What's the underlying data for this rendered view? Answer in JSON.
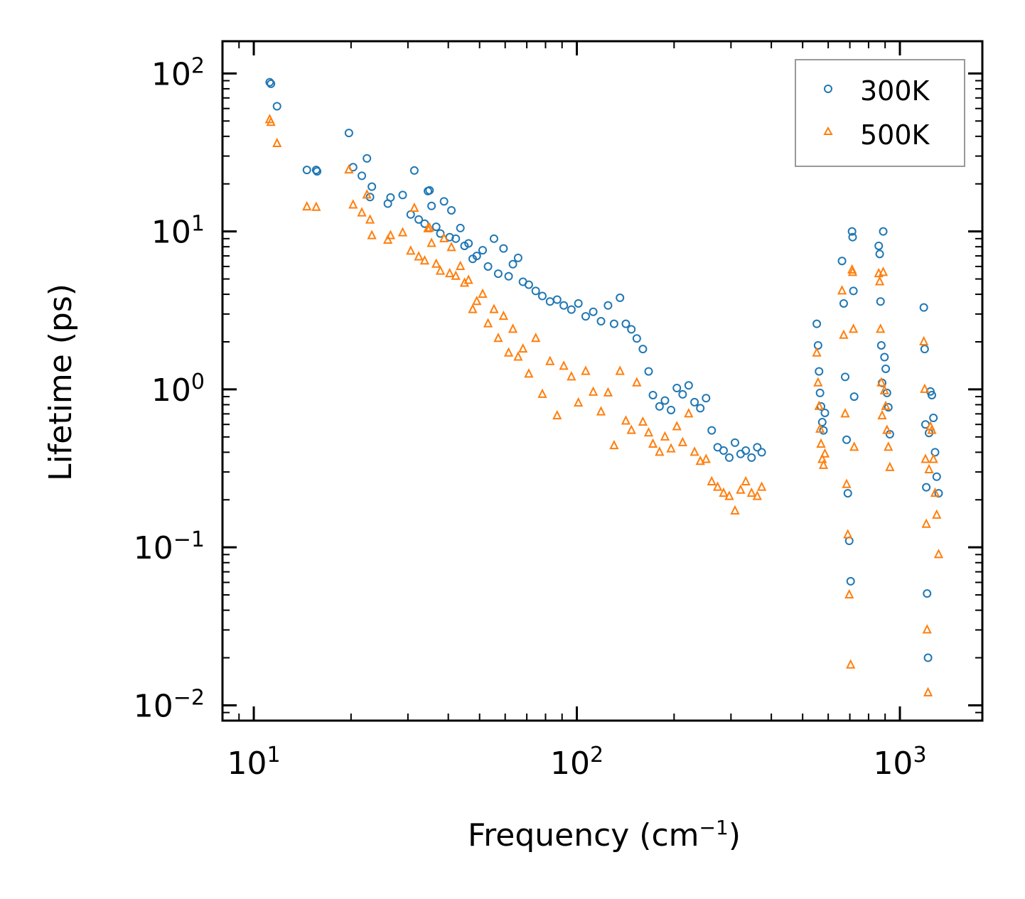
{
  "chart_data": {
    "type": "scatter",
    "xscale": "log",
    "yscale": "log",
    "xlabel": "Frequency (cm",
    "xlabel_sup": "−1",
    "xlabel_close": ")",
    "ylabel": "Lifetime (ps)",
    "xlim": [
      8,
      1800
    ],
    "ylim": [
      0.008,
      160
    ],
    "xticks": [
      {
        "value": 10,
        "base": "10",
        "exp": "1"
      },
      {
        "value": 100,
        "base": "10",
        "exp": "2"
      },
      {
        "value": 1000,
        "base": "10",
        "exp": "3"
      }
    ],
    "yticks": [
      {
        "value": 0.01,
        "base": "10",
        "exp": "−2"
      },
      {
        "value": 0.1,
        "base": "10",
        "exp": "−1"
      },
      {
        "value": 1,
        "base": "10",
        "exp": "0"
      },
      {
        "value": 10,
        "base": "10",
        "exp": "1"
      },
      {
        "value": 100,
        "base": "10",
        "exp": "2"
      }
    ],
    "legend_position": "top-right",
    "series": [
      {
        "name": "300K",
        "marker": "circle",
        "color": "#1f77b4",
        "points": [
          [
            11.2,
            88
          ],
          [
            11.3,
            86
          ],
          [
            11.8,
            62
          ],
          [
            14.6,
            24.5
          ],
          [
            15.6,
            24.5
          ],
          [
            15.7,
            24
          ],
          [
            19.7,
            42
          ],
          [
            20.3,
            25.5
          ],
          [
            21.6,
            22.5
          ],
          [
            22.4,
            29
          ],
          [
            22.9,
            16.5
          ],
          [
            23.2,
            19.2
          ],
          [
            26.0,
            15
          ],
          [
            26.5,
            16.4
          ],
          [
            28.9,
            17
          ],
          [
            30.6,
            12.8
          ],
          [
            31.4,
            24.3
          ],
          [
            32.4,
            11.9
          ],
          [
            33.8,
            11.2
          ],
          [
            34.6,
            18
          ],
          [
            35.0,
            18.2
          ],
          [
            35.5,
            14.5
          ],
          [
            36.7,
            10.7
          ],
          [
            37.8,
            9.7
          ],
          [
            38.8,
            15.5
          ],
          [
            40.4,
            9.2
          ],
          [
            40.9,
            13.6
          ],
          [
            42.2,
            9.0
          ],
          [
            43.6,
            10.5
          ],
          [
            44.9,
            8.1
          ],
          [
            46.2,
            8.4
          ],
          [
            47.6,
            6.7
          ],
          [
            49.0,
            7.0
          ],
          [
            51.1,
            7.6
          ],
          [
            53.1,
            6.0
          ],
          [
            55.4,
            9.0
          ],
          [
            57.1,
            5.4
          ],
          [
            59.3,
            7.8
          ],
          [
            61.5,
            5.2
          ],
          [
            63.4,
            6.2
          ],
          [
            65.8,
            6.8
          ],
          [
            68.1,
            4.8
          ],
          [
            71.0,
            4.6
          ],
          [
            74.6,
            4.2
          ],
          [
            78.2,
            3.9
          ],
          [
            82.6,
            3.6
          ],
          [
            86.9,
            3.7
          ],
          [
            91.1,
            3.4
          ],
          [
            96.2,
            3.2
          ],
          [
            101.1,
            3.5
          ],
          [
            106.5,
            2.9
          ],
          [
            112.4,
            3.1
          ],
          [
            118.8,
            2.7
          ],
          [
            124.9,
            3.4
          ],
          [
            130.4,
            2.6
          ],
          [
            136.0,
            3.8
          ],
          [
            141.8,
            2.6
          ],
          [
            147.5,
            2.4
          ],
          [
            153.3,
            2.1
          ],
          [
            160.1,
            1.8
          ],
          [
            166.8,
            1.3
          ],
          [
            172.0,
            0.92
          ],
          [
            180.3,
            0.78
          ],
          [
            187.4,
            0.85
          ],
          [
            195.7,
            0.74
          ],
          [
            204.0,
            1.02
          ],
          [
            212.6,
            0.93
          ],
          [
            221.9,
            1.06
          ],
          [
            231.4,
            0.83
          ],
          [
            241.1,
            0.76
          ],
          [
            251.2,
            0.88
          ],
          [
            261.5,
            0.55
          ],
          [
            272.8,
            0.43
          ],
          [
            284.6,
            0.41
          ],
          [
            296.4,
            0.37
          ],
          [
            308.7,
            0.46
          ],
          [
            321.3,
            0.39
          ],
          [
            333.4,
            0.41
          ],
          [
            347.4,
            0.37
          ],
          [
            361.8,
            0.43
          ],
          [
            373.5,
            0.4
          ],
          [
            553,
            2.6
          ],
          [
            558,
            1.9
          ],
          [
            562,
            1.3
          ],
          [
            566,
            0.95
          ],
          [
            570,
            0.78
          ],
          [
            575,
            0.62
          ],
          [
            580,
            0.55
          ],
          [
            586,
            0.71
          ],
          [
            662,
            6.5
          ],
          [
            670,
            3.5
          ],
          [
            677,
            1.2
          ],
          [
            684,
            0.48
          ],
          [
            690,
            0.22
          ],
          [
            697,
            0.11
          ],
          [
            704,
            0.061
          ],
          [
            711,
            10
          ],
          [
            714,
            9.2
          ],
          [
            718,
            4.2
          ],
          [
            722,
            0.9
          ],
          [
            860,
            8.1
          ],
          [
            866,
            7.2
          ],
          [
            871,
            3.6
          ],
          [
            876,
            1.9
          ],
          [
            881,
            1.1
          ],
          [
            888,
            10
          ],
          [
            896,
            1.6
          ],
          [
            904,
            1.35
          ],
          [
            912,
            0.95
          ],
          [
            921,
            0.77
          ],
          [
            931,
            0.52
          ],
          [
            1186,
            3.3
          ],
          [
            1193,
            1.8
          ],
          [
            1200,
            0.6
          ],
          [
            1207,
            0.24
          ],
          [
            1214,
            0.051
          ],
          [
            1222,
            0.02
          ],
          [
            1231,
            0.53
          ],
          [
            1243,
            0.97
          ],
          [
            1256,
            0.92
          ],
          [
            1270,
            0.66
          ],
          [
            1285,
            0.4
          ],
          [
            1300,
            0.28
          ],
          [
            1318,
            0.22
          ]
        ]
      },
      {
        "name": "500K",
        "marker": "triangle",
        "color": "#ff7f0e",
        "points": [
          [
            11.2,
            51
          ],
          [
            11.3,
            49
          ],
          [
            11.8,
            36
          ],
          [
            14.6,
            14.3
          ],
          [
            15.6,
            14.2
          ],
          [
            19.7,
            24.5
          ],
          [
            20.3,
            14.7
          ],
          [
            21.6,
            13.1
          ],
          [
            22.4,
            17
          ],
          [
            22.9,
            11.8
          ],
          [
            23.2,
            9.4
          ],
          [
            26.0,
            8.8
          ],
          [
            26.5,
            9.4
          ],
          [
            28.9,
            9.8
          ],
          [
            30.6,
            7.5
          ],
          [
            31.4,
            14
          ],
          [
            32.4,
            6.9
          ],
          [
            33.8,
            6.5
          ],
          [
            34.6,
            10.4
          ],
          [
            35.0,
            10.5
          ],
          [
            35.5,
            8.4
          ],
          [
            36.7,
            6.2
          ],
          [
            37.8,
            5.6
          ],
          [
            38.8,
            9.0
          ],
          [
            40.4,
            5.4
          ],
          [
            40.9,
            7.9
          ],
          [
            42.2,
            5.2
          ],
          [
            43.6,
            6.0
          ],
          [
            44.9,
            4.7
          ],
          [
            46.2,
            4.9
          ],
          [
            47.6,
            3.2
          ],
          [
            49.0,
            3.6
          ],
          [
            51.1,
            4.0
          ],
          [
            53.1,
            2.6
          ],
          [
            55.4,
            3.2
          ],
          [
            57.1,
            2.1
          ],
          [
            59.3,
            2.9
          ],
          [
            61.5,
            1.7
          ],
          [
            63.4,
            2.4
          ],
          [
            65.8,
            1.6
          ],
          [
            68.1,
            1.8
          ],
          [
            71.0,
            1.25
          ],
          [
            74.6,
            2.1
          ],
          [
            78.2,
            0.93
          ],
          [
            82.6,
            1.5
          ],
          [
            86.9,
            0.68
          ],
          [
            91.1,
            1.4
          ],
          [
            96.2,
            1.2
          ],
          [
            101.1,
            0.82
          ],
          [
            106.5,
            1.3
          ],
          [
            112.4,
            0.96
          ],
          [
            118.8,
            0.72
          ],
          [
            124.9,
            0.95
          ],
          [
            130.4,
            0.44
          ],
          [
            136.0,
            1.3
          ],
          [
            141.8,
            0.63
          ],
          [
            147.5,
            0.55
          ],
          [
            153.3,
            1.1
          ],
          [
            160.1,
            0.62
          ],
          [
            166.8,
            0.53
          ],
          [
            172.0,
            0.45
          ],
          [
            180.3,
            0.4
          ],
          [
            187.4,
            0.5
          ],
          [
            195.7,
            0.42
          ],
          [
            204.0,
            0.58
          ],
          [
            212.6,
            0.46
          ],
          [
            221.9,
            0.7
          ],
          [
            231.4,
            0.4
          ],
          [
            241.1,
            0.35
          ],
          [
            251.2,
            0.36
          ],
          [
            261.5,
            0.26
          ],
          [
            272.8,
            0.24
          ],
          [
            284.6,
            0.22
          ],
          [
            296.4,
            0.21
          ],
          [
            308.7,
            0.17
          ],
          [
            321.3,
            0.23
          ],
          [
            333.4,
            0.26
          ],
          [
            347.4,
            0.22
          ],
          [
            361.8,
            0.21
          ],
          [
            373.5,
            0.24
          ],
          [
            553,
            1.7
          ],
          [
            558,
            1.1
          ],
          [
            562,
            0.78
          ],
          [
            566,
            0.56
          ],
          [
            570,
            0.45
          ],
          [
            575,
            0.36
          ],
          [
            580,
            0.33
          ],
          [
            586,
            0.39
          ],
          [
            662,
            4.2
          ],
          [
            670,
            2.2
          ],
          [
            677,
            0.7
          ],
          [
            684,
            0.25
          ],
          [
            690,
            0.12
          ],
          [
            697,
            0.05
          ],
          [
            704,
            0.018
          ],
          [
            711,
            5.7
          ],
          [
            714,
            5.5
          ],
          [
            718,
            2.4
          ],
          [
            722,
            0.43
          ],
          [
            860,
            5.4
          ],
          [
            866,
            4.8
          ],
          [
            871,
            2.4
          ],
          [
            876,
            1.1
          ],
          [
            881,
            0.68
          ],
          [
            888,
            5.5
          ],
          [
            896,
            0.98
          ],
          [
            904,
            0.78
          ],
          [
            912,
            0.55
          ],
          [
            921,
            0.43
          ],
          [
            931,
            0.32
          ],
          [
            1186,
            2.0
          ],
          [
            1193,
            1.0
          ],
          [
            1200,
            0.36
          ],
          [
            1207,
            0.14
          ],
          [
            1214,
            0.03
          ],
          [
            1222,
            0.012
          ],
          [
            1231,
            0.31
          ],
          [
            1243,
            0.58
          ],
          [
            1256,
            0.55
          ],
          [
            1270,
            0.36
          ],
          [
            1285,
            0.22
          ],
          [
            1300,
            0.16
          ],
          [
            1318,
            0.09
          ]
        ]
      }
    ]
  }
}
